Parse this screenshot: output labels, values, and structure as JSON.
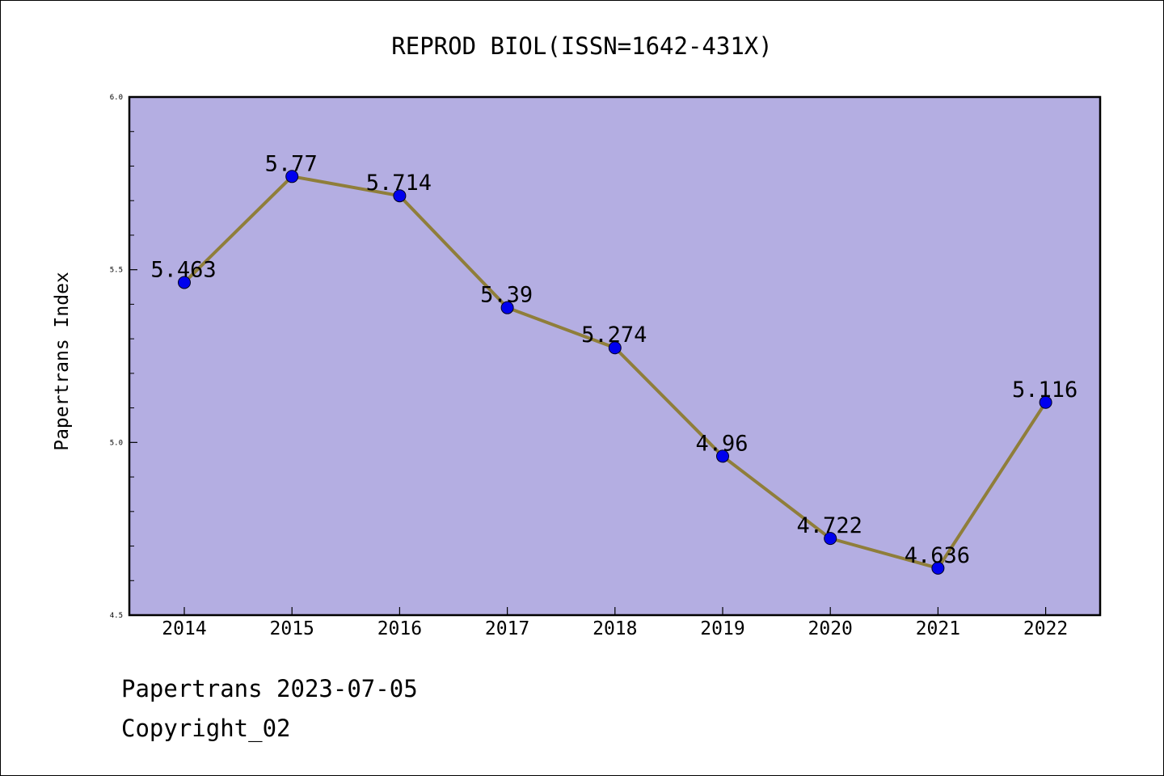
{
  "chart_data": {
    "type": "line",
    "title": "REPROD BIOL(ISSN=1642-431X)",
    "xlabel": "",
    "ylabel": "Papertrans Index",
    "categories": [
      "2014",
      "2015",
      "2016",
      "2017",
      "2018",
      "2019",
      "2020",
      "2021",
      "2022"
    ],
    "series": [
      {
        "name": "Papertrans Index",
        "values": [
          5.463,
          5.77,
          5.714,
          5.39,
          5.274,
          4.96,
          4.722,
          4.636,
          5.116
        ],
        "labels": [
          "5.463",
          "5.77",
          "5.714",
          "5.39",
          "5.274",
          "4.96",
          "4.722",
          "4.636",
          "5.116"
        ]
      }
    ],
    "ylim": [
      4.5,
      6.0
    ],
    "yticks": [
      4.5,
      5.0,
      5.5,
      6.0
    ],
    "ytick_labels": [
      "4.5",
      "5.0",
      "5.5",
      "6.0"
    ],
    "grid": false,
    "colors": {
      "plot_background": "#b4aee2",
      "line": "#8f7e3a",
      "marker": "#0000ee"
    }
  },
  "footer": {
    "date_text": "Papertrans 2023-07-05",
    "copyright_text": "Copyright_02"
  }
}
